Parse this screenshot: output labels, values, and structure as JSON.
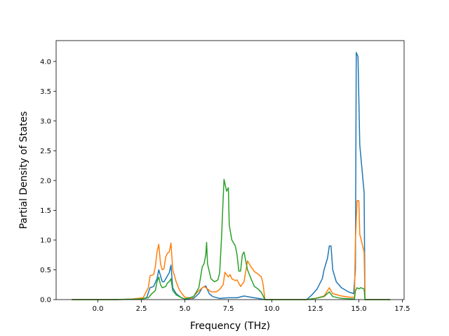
{
  "chart_data": {
    "type": "line",
    "title": "",
    "xlabel": "Frequency (THz)",
    "ylabel": "Partial Density of States",
    "xlim": [
      -2.4,
      17.6
    ],
    "ylim": [
      0,
      4.35
    ],
    "xticks": [
      0.0,
      2.5,
      5.0,
      7.5,
      10.0,
      12.5,
      15.0,
      17.5
    ],
    "xtick_labels": [
      "0.0",
      "2.5",
      "5.0",
      "7.5",
      "10.0",
      "12.5",
      "15.0",
      "17.5"
    ],
    "yticks": [
      0.0,
      0.5,
      1.0,
      1.5,
      2.0,
      2.5,
      3.0,
      3.5,
      4.0
    ],
    "ytick_labels": [
      "0.0",
      "0.5",
      "1.0",
      "1.5",
      "2.0",
      "2.5",
      "3.0",
      "3.5",
      "4.0"
    ],
    "grid": false,
    "legend": "none",
    "series": [
      {
        "color": "#1f77b4",
        "points": [
          [
            -1.5,
            0.0
          ],
          [
            1.0,
            0.0
          ],
          [
            2.5,
            0.01
          ],
          [
            2.8,
            0.03
          ],
          [
            3.0,
            0.2
          ],
          [
            3.2,
            0.22
          ],
          [
            3.4,
            0.35
          ],
          [
            3.5,
            0.5
          ],
          [
            3.6,
            0.4
          ],
          [
            3.7,
            0.3
          ],
          [
            3.8,
            0.3
          ],
          [
            4.0,
            0.4
          ],
          [
            4.1,
            0.45
          ],
          [
            4.2,
            0.58
          ],
          [
            4.3,
            0.2
          ],
          [
            4.5,
            0.1
          ],
          [
            4.8,
            0.03
          ],
          [
            5.0,
            0.01
          ],
          [
            5.5,
            0.02
          ],
          [
            5.8,
            0.1
          ],
          [
            6.0,
            0.2
          ],
          [
            6.2,
            0.23
          ],
          [
            6.4,
            0.1
          ],
          [
            6.6,
            0.05
          ],
          [
            7.0,
            0.02
          ],
          [
            7.5,
            0.03
          ],
          [
            8.0,
            0.03
          ],
          [
            8.4,
            0.06
          ],
          [
            8.8,
            0.04
          ],
          [
            9.2,
            0.02
          ],
          [
            9.6,
            0.0
          ],
          [
            12.0,
            0.0
          ],
          [
            12.3,
            0.08
          ],
          [
            12.6,
            0.18
          ],
          [
            12.9,
            0.35
          ],
          [
            13.0,
            0.5
          ],
          [
            13.2,
            0.7
          ],
          [
            13.3,
            0.9
          ],
          [
            13.4,
            0.9
          ],
          [
            13.5,
            0.5
          ],
          [
            13.7,
            0.3
          ],
          [
            14.0,
            0.2
          ],
          [
            14.4,
            0.13
          ],
          [
            14.7,
            0.1
          ],
          [
            14.8,
            0.5
          ],
          [
            14.85,
            4.15
          ],
          [
            14.95,
            4.08
          ],
          [
            15.05,
            2.6
          ],
          [
            15.3,
            1.8
          ],
          [
            15.35,
            0.0
          ],
          [
            16.8,
            0.0
          ]
        ]
      },
      {
        "color": "#ff7f0e",
        "points": [
          [
            -1.5,
            0.0
          ],
          [
            1.0,
            0.0
          ],
          [
            2.0,
            0.01
          ],
          [
            2.6,
            0.03
          ],
          [
            2.9,
            0.2
          ],
          [
            3.0,
            0.4
          ],
          [
            3.2,
            0.42
          ],
          [
            3.3,
            0.55
          ],
          [
            3.4,
            0.8
          ],
          [
            3.5,
            0.93
          ],
          [
            3.6,
            0.6
          ],
          [
            3.7,
            0.5
          ],
          [
            3.8,
            0.52
          ],
          [
            3.9,
            0.72
          ],
          [
            4.0,
            0.78
          ],
          [
            4.1,
            0.8
          ],
          [
            4.2,
            0.95
          ],
          [
            4.3,
            0.5
          ],
          [
            4.5,
            0.3
          ],
          [
            4.7,
            0.15
          ],
          [
            5.0,
            0.04
          ],
          [
            5.4,
            0.02
          ],
          [
            5.8,
            0.15
          ],
          [
            6.1,
            0.22
          ],
          [
            6.3,
            0.18
          ],
          [
            6.5,
            0.13
          ],
          [
            6.8,
            0.13
          ],
          [
            7.0,
            0.17
          ],
          [
            7.2,
            0.25
          ],
          [
            7.3,
            0.46
          ],
          [
            7.4,
            0.42
          ],
          [
            7.5,
            0.38
          ],
          [
            7.6,
            0.42
          ],
          [
            7.7,
            0.35
          ],
          [
            7.9,
            0.32
          ],
          [
            8.0,
            0.33
          ],
          [
            8.2,
            0.22
          ],
          [
            8.4,
            0.3
          ],
          [
            8.6,
            0.65
          ],
          [
            8.8,
            0.55
          ],
          [
            9.0,
            0.47
          ],
          [
            9.2,
            0.43
          ],
          [
            9.4,
            0.38
          ],
          [
            9.5,
            0.25
          ],
          [
            9.6,
            0.0
          ],
          [
            12.0,
            0.0
          ],
          [
            12.5,
            0.02
          ],
          [
            13.0,
            0.06
          ],
          [
            13.3,
            0.2
          ],
          [
            13.5,
            0.1
          ],
          [
            14.0,
            0.06
          ],
          [
            14.5,
            0.04
          ],
          [
            14.75,
            0.04
          ],
          [
            14.8,
            1.0
          ],
          [
            14.9,
            1.66
          ],
          [
            15.0,
            1.66
          ],
          [
            15.05,
            1.1
          ],
          [
            15.3,
            0.8
          ],
          [
            15.35,
            0.0
          ],
          [
            16.8,
            0.0
          ]
        ]
      },
      {
        "color": "#2ca02c",
        "points": [
          [
            -1.5,
            0.0
          ],
          [
            1.0,
            0.0
          ],
          [
            2.5,
            0.01
          ],
          [
            2.9,
            0.03
          ],
          [
            3.1,
            0.1
          ],
          [
            3.3,
            0.15
          ],
          [
            3.4,
            0.3
          ],
          [
            3.5,
            0.38
          ],
          [
            3.6,
            0.25
          ],
          [
            3.7,
            0.2
          ],
          [
            3.9,
            0.22
          ],
          [
            4.0,
            0.28
          ],
          [
            4.1,
            0.3
          ],
          [
            4.2,
            0.35
          ],
          [
            4.3,
            0.15
          ],
          [
            4.5,
            0.08
          ],
          [
            4.8,
            0.03
          ],
          [
            5.0,
            0.01
          ],
          [
            5.5,
            0.05
          ],
          [
            5.8,
            0.2
          ],
          [
            6.0,
            0.55
          ],
          [
            6.1,
            0.6
          ],
          [
            6.2,
            0.75
          ],
          [
            6.25,
            0.96
          ],
          [
            6.3,
            0.6
          ],
          [
            6.5,
            0.35
          ],
          [
            6.7,
            0.3
          ],
          [
            6.9,
            0.33
          ],
          [
            7.0,
            0.45
          ],
          [
            7.1,
            1.0
          ],
          [
            7.2,
            1.7
          ],
          [
            7.25,
            2.02
          ],
          [
            7.4,
            1.82
          ],
          [
            7.5,
            1.88
          ],
          [
            7.55,
            1.25
          ],
          [
            7.7,
            1.0
          ],
          [
            7.9,
            0.9
          ],
          [
            8.0,
            0.75
          ],
          [
            8.1,
            0.48
          ],
          [
            8.2,
            0.48
          ],
          [
            8.3,
            0.75
          ],
          [
            8.4,
            0.8
          ],
          [
            8.6,
            0.5
          ],
          [
            8.8,
            0.35
          ],
          [
            9.0,
            0.22
          ],
          [
            9.2,
            0.18
          ],
          [
            9.4,
            0.12
          ],
          [
            9.6,
            0.0
          ],
          [
            12.0,
            0.0
          ],
          [
            12.5,
            0.02
          ],
          [
            13.0,
            0.05
          ],
          [
            13.3,
            0.13
          ],
          [
            13.5,
            0.05
          ],
          [
            14.0,
            0.02
          ],
          [
            14.75,
            0.01
          ],
          [
            14.8,
            0.15
          ],
          [
            14.9,
            0.2
          ],
          [
            15.0,
            0.18
          ],
          [
            15.1,
            0.2
          ],
          [
            15.3,
            0.18
          ],
          [
            15.35,
            0.0
          ],
          [
            16.8,
            0.0
          ]
        ]
      }
    ]
  }
}
